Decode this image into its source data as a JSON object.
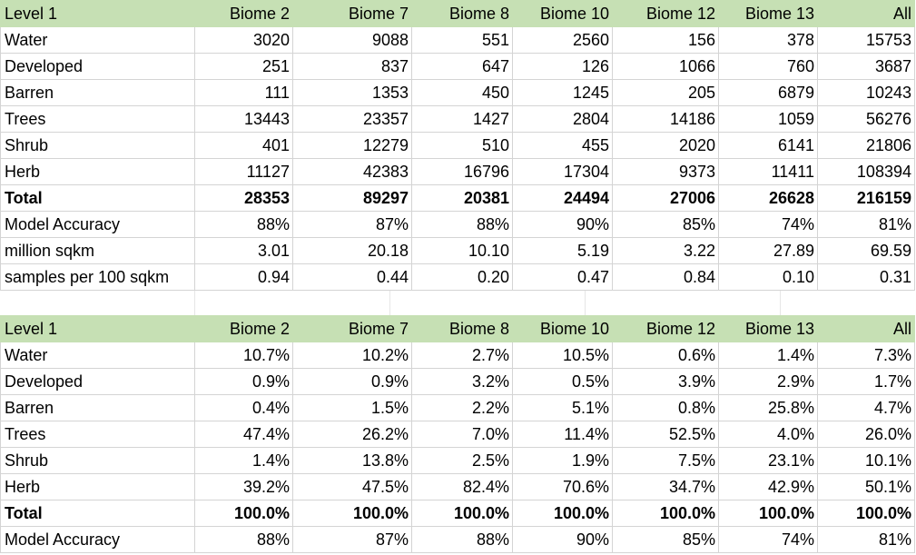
{
  "table_counts": {
    "headers": [
      "Level 1",
      "Biome 2",
      "Biome 7",
      "Biome 8",
      "Biome 10",
      "Biome 12",
      "Biome 13",
      "All"
    ],
    "rows": [
      {
        "label": "Water",
        "values": [
          "3020",
          "9088",
          "551",
          "2560",
          "156",
          "378",
          "15753"
        ]
      },
      {
        "label": "Developed",
        "values": [
          "251",
          "837",
          "647",
          "126",
          "1066",
          "760",
          "3687"
        ]
      },
      {
        "label": "Barren",
        "values": [
          "111",
          "1353",
          "450",
          "1245",
          "205",
          "6879",
          "10243"
        ]
      },
      {
        "label": "Trees",
        "values": [
          "13443",
          "23357",
          "1427",
          "2804",
          "14186",
          "1059",
          "56276"
        ]
      },
      {
        "label": "Shrub",
        "values": [
          "401",
          "12279",
          "510",
          "455",
          "2020",
          "6141",
          "21806"
        ]
      },
      {
        "label": "Herb",
        "values": [
          "11127",
          "42383",
          "16796",
          "17304",
          "9373",
          "11411",
          "108394"
        ]
      },
      {
        "label": "Total",
        "values": [
          "28353",
          "89297",
          "20381",
          "24494",
          "27006",
          "26628",
          "216159"
        ]
      },
      {
        "label": "Model Accuracy",
        "values": [
          "88%",
          "87%",
          "88%",
          "90%",
          "85%",
          "74%",
          "81%"
        ]
      },
      {
        "label": "million sqkm",
        "values": [
          "3.01",
          "20.18",
          "10.10",
          "5.19",
          "3.22",
          "27.89",
          "69.59"
        ]
      },
      {
        "label": "samples per 100 sqkm",
        "values": [
          "0.94",
          "0.44",
          "0.20",
          "0.47",
          "0.84",
          "0.10",
          "0.31"
        ]
      }
    ]
  },
  "table_percent": {
    "headers": [
      "Level 1",
      "Biome 2",
      "Biome 7",
      "Biome 8",
      "Biome 10",
      "Biome 12",
      "Biome 13",
      "All"
    ],
    "rows": [
      {
        "label": "Water",
        "values": [
          "10.7%",
          "10.2%",
          "2.7%",
          "10.5%",
          "0.6%",
          "1.4%",
          "7.3%"
        ]
      },
      {
        "label": "Developed",
        "values": [
          "0.9%",
          "0.9%",
          "3.2%",
          "0.5%",
          "3.9%",
          "2.9%",
          "1.7%"
        ]
      },
      {
        "label": "Barren",
        "values": [
          "0.4%",
          "1.5%",
          "2.2%",
          "5.1%",
          "0.8%",
          "25.8%",
          "4.7%"
        ]
      },
      {
        "label": "Trees",
        "values": [
          "47.4%",
          "26.2%",
          "7.0%",
          "11.4%",
          "52.5%",
          "4.0%",
          "26.0%"
        ]
      },
      {
        "label": "Shrub",
        "values": [
          "1.4%",
          "13.8%",
          "2.5%",
          "1.9%",
          "7.5%",
          "23.1%",
          "10.1%"
        ]
      },
      {
        "label": "Herb",
        "values": [
          "39.2%",
          "47.5%",
          "82.4%",
          "70.6%",
          "34.7%",
          "42.9%",
          "50.1%"
        ]
      },
      {
        "label": "Total",
        "values": [
          "100.0%",
          "100.0%",
          "100.0%",
          "100.0%",
          "100.0%",
          "100.0%",
          "100.0%"
        ]
      },
      {
        "label": "Model Accuracy",
        "values": [
          "88%",
          "87%",
          "88%",
          "90%",
          "85%",
          "74%",
          "81%"
        ]
      }
    ]
  }
}
